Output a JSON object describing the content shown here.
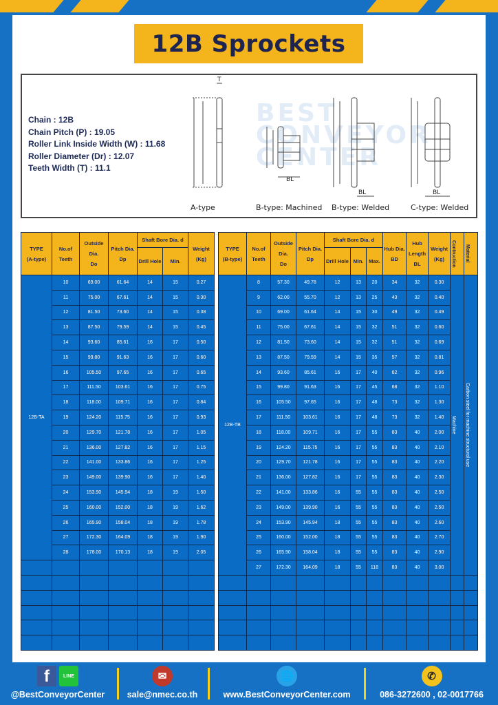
{
  "title": "12B Sprockets",
  "specs": [
    "Chain  :  12B",
    "Chain Pitch (P)  :  19.05",
    "Roller Link Inside Width (W) : 11.68",
    "Roller Diameter (Dr)  : 12.07",
    "Teeth Width (T)  :  11.1"
  ],
  "watermark": "BEST CONVEYOR CENTER",
  "diagram_labels": [
    "A-type",
    "B-type: Machined",
    "B-type: Welded",
    "C-type: Welded"
  ],
  "dim_labels": {
    "T": "T",
    "Do": "Do",
    "Dp": "Dp",
    "d": "d",
    "BD": "BD",
    "BL": "BL"
  },
  "table_a": {
    "headers": {
      "type": "TYPE",
      "type2": "(A-type)",
      "teeth": "No.of",
      "teeth2": "Teeth",
      "do": "Outside",
      "do2": "Dia.",
      "do3": "Do",
      "dp": "Pitch Dia.",
      "dp2": "Dp",
      "bore": "Shaft Bore Dia. d",
      "drill": "Drill Hole",
      "min": "Min.",
      "weight": "Weight",
      "weight2": "(Kg)"
    },
    "type_name": "12B-TA",
    "rows": [
      [
        "10",
        "69.00",
        "61.64",
        "14",
        "15",
        "0.27"
      ],
      [
        "11",
        "75.00",
        "67.61",
        "14",
        "15",
        "0.30"
      ],
      [
        "12",
        "81.50",
        "73.60",
        "14",
        "15",
        "0.38"
      ],
      [
        "13",
        "87.50",
        "79.59",
        "14",
        "15",
        "0.45"
      ],
      [
        "14",
        "93.60",
        "85.61",
        "16",
        "17",
        "0.50"
      ],
      [
        "15",
        "99.80",
        "91.63",
        "16",
        "17",
        "0.60"
      ],
      [
        "16",
        "105.50",
        "97.65",
        "16",
        "17",
        "0.65"
      ],
      [
        "17",
        "111.50",
        "103.61",
        "16",
        "17",
        "0.75"
      ],
      [
        "18",
        "118.00",
        "109.71",
        "16",
        "17",
        "0.84"
      ],
      [
        "19",
        "124.20",
        "115.75",
        "16",
        "17",
        "0.93"
      ],
      [
        "20",
        "129.70",
        "121.78",
        "16",
        "17",
        "1.05"
      ],
      [
        "21",
        "136.00",
        "127.82",
        "16",
        "17",
        "1.15"
      ],
      [
        "22",
        "141.00",
        "133.86",
        "16",
        "17",
        "1.25"
      ],
      [
        "23",
        "149.00",
        "139.90",
        "16",
        "17",
        "1.40"
      ],
      [
        "24",
        "153.90",
        "145.94",
        "18",
        "19",
        "1.50"
      ],
      [
        "25",
        "160.00",
        "152.00",
        "18",
        "19",
        "1.62"
      ],
      [
        "26",
        "165.90",
        "158.04",
        "18",
        "19",
        "1.78"
      ],
      [
        "27",
        "172.30",
        "164.09",
        "18",
        "19",
        "1.90"
      ],
      [
        "28",
        "178.00",
        "170.13",
        "18",
        "19",
        "2.05"
      ]
    ]
  },
  "table_b": {
    "headers": {
      "type": "TYPE",
      "type2": "(B-type)",
      "teeth": "No.of",
      "teeth2": "Teeth",
      "do": "Outside",
      "do2": "Dia.",
      "do3": "Do",
      "dp": "Pitch Dia.",
      "dp2": "Dp",
      "bore": "Shaft Bore Dia. d",
      "drill": "Drill Hole",
      "min": "Min.",
      "max": "Max.",
      "bd": "Hub Dia.",
      "bd2": "BD",
      "bl": "Hub",
      "bl2": "Length",
      "bl3": "BL",
      "weight": "Weight",
      "weight2": "(Kg)",
      "construction": "Contruction",
      "material": "Material"
    },
    "type_name": "12B-TB",
    "construction_value": "Machine",
    "material_value": "Carbon steel for machine structural use",
    "rows": [
      [
        "8",
        "57.30",
        "49.78",
        "12",
        "13",
        "20",
        "34",
        "32",
        "0.30"
      ],
      [
        "9",
        "62.00",
        "55.70",
        "12",
        "13",
        "25",
        "43",
        "32",
        "0.40"
      ],
      [
        "10",
        "69.00",
        "61.64",
        "14",
        "15",
        "30",
        "49",
        "32",
        "0.49"
      ],
      [
        "11",
        "75.00",
        "67.61",
        "14",
        "15",
        "32",
        "51",
        "32",
        "0.60"
      ],
      [
        "12",
        "81.50",
        "73.60",
        "14",
        "15",
        "32",
        "51",
        "32",
        "0.69"
      ],
      [
        "13",
        "87.50",
        "79.59",
        "14",
        "15",
        "35",
        "57",
        "32",
        "0.81"
      ],
      [
        "14",
        "93.60",
        "85.61",
        "16",
        "17",
        "40",
        "62",
        "32",
        "0.96"
      ],
      [
        "15",
        "99.80",
        "91.63",
        "16",
        "17",
        "45",
        "68",
        "32",
        "1.10"
      ],
      [
        "16",
        "105.50",
        "97.65",
        "16",
        "17",
        "48",
        "73",
        "32",
        "1.30"
      ],
      [
        "17",
        "111.50",
        "103.61",
        "16",
        "17",
        "48",
        "73",
        "32",
        "1.40"
      ],
      [
        "18",
        "118.00",
        "109.71",
        "16",
        "17",
        "55",
        "83",
        "40",
        "2.00"
      ],
      [
        "19",
        "124.20",
        "115.75",
        "16",
        "17",
        "55",
        "83",
        "40",
        "2.10"
      ],
      [
        "20",
        "129.70",
        "121.78",
        "16",
        "17",
        "55",
        "83",
        "40",
        "2.20"
      ],
      [
        "21",
        "136.00",
        "127.82",
        "16",
        "17",
        "55",
        "83",
        "40",
        "2.30"
      ],
      [
        "22",
        "141.00",
        "133.86",
        "16",
        "55",
        "55",
        "83",
        "40",
        "2.50"
      ],
      [
        "23",
        "149.00",
        "139.90",
        "16",
        "55",
        "55",
        "83",
        "40",
        "2.50"
      ],
      [
        "24",
        "153.90",
        "145.94",
        "18",
        "55",
        "55",
        "83",
        "40",
        "2.60"
      ],
      [
        "25",
        "160.00",
        "152.00",
        "18",
        "55",
        "55",
        "83",
        "40",
        "2.70"
      ],
      [
        "26",
        "165.90",
        "158.04",
        "18",
        "55",
        "55",
        "83",
        "40",
        "2.90"
      ],
      [
        "27",
        "172.30",
        "164.09",
        "18",
        "55",
        "118",
        "83",
        "40",
        "3.00"
      ]
    ]
  },
  "footer": {
    "social": "@BestConveyorCenter",
    "email": "sale@nmec.co.th",
    "website": "www.BestConveyorCenter.com",
    "phone": "086-3272600 , 02-0017766",
    "line_label": "LINE",
    "icons": [
      "facebook-icon",
      "line-icon",
      "mail-icon",
      "globe-icon",
      "phone-icon"
    ]
  },
  "colors": {
    "brand_blue": "#1670c4",
    "accent_yellow": "#f4b51c",
    "cell_blue": "#0b6cc6",
    "title_text": "#1d2450"
  }
}
